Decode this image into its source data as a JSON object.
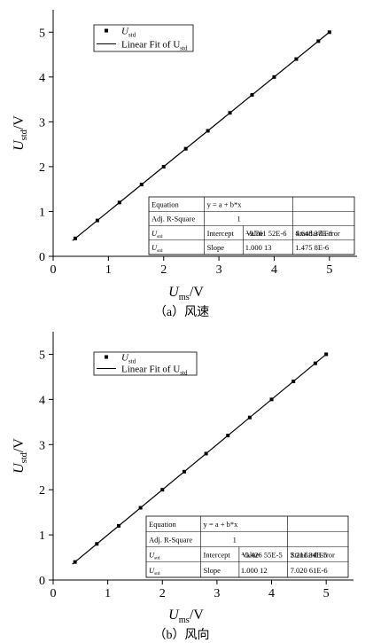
{
  "chart_data": [
    {
      "type": "scatter",
      "x_label": {
        "main": "U",
        "sub": "ms",
        "unit": "/V"
      },
      "y_label": {
        "main": "U",
        "sub": "std",
        "unit": "/V"
      },
      "caption": "（a）风速",
      "xlim": [
        0,
        5.5
      ],
      "ylim": [
        0,
        5.5
      ],
      "xticks": [
        0,
        1,
        2,
        3,
        4,
        5
      ],
      "yticks": [
        0,
        1,
        2,
        3,
        4,
        5
      ],
      "series": [
        {
          "name": "U",
          "name_sub": "std",
          "type": "scatter",
          "color": "#000000",
          "x": [
            0.4,
            0.8,
            1.2,
            1.6,
            2.0,
            2.4,
            2.8,
            3.2,
            3.6,
            4.0,
            4.4,
            4.8,
            5.0
          ],
          "values": [
            0.4,
            0.8,
            1.2,
            1.6,
            2.0,
            2.4,
            2.8,
            3.2,
            3.6,
            4.0,
            4.4,
            4.8,
            5.0
          ]
        },
        {
          "name": "Linear Fit of U",
          "name_sub": "std",
          "type": "line",
          "color": "#000000",
          "x": [
            0.35,
            5.0
          ],
          "values": [
            0.35,
            5.0
          ]
        }
      ],
      "fit_table": {
        "equation_label": "Equation",
        "equation": "y = a + b*x",
        "adj_r2_label": "Adj. R-Square",
        "adj_r2": 1,
        "value_header": "Value",
        "error_header": "Standard Error",
        "params": [
          {
            "var": "U",
            "var_sub": "std",
            "name": "Intercept",
            "value": "−9.761 52E-6",
            "error": "4.648 37E-6"
          },
          {
            "var": "U",
            "var_sub": "std",
            "name": "Slope",
            "value": "1.000 13",
            "error": "1.475 8E-6"
          }
        ]
      }
    },
    {
      "type": "scatter",
      "x_label": {
        "main": "U",
        "sub": "ms",
        "unit": "/V"
      },
      "y_label": {
        "main": "U",
        "sub": "std",
        "unit": "/V"
      },
      "caption": "（b）风向",
      "xlim": [
        0,
        5.5
      ],
      "ylim": [
        0,
        5.5
      ],
      "xticks": [
        0,
        1,
        2,
        3,
        4,
        5
      ],
      "yticks": [
        0,
        1,
        2,
        3,
        4,
        5
      ],
      "series": [
        {
          "name": "U",
          "name_sub": "std",
          "type": "scatter",
          "color": "#000000",
          "x": [
            0.4,
            0.8,
            1.2,
            1.6,
            2.0,
            2.4,
            2.8,
            3.2,
            3.6,
            4.0,
            4.4,
            4.8,
            5.0
          ],
          "values": [
            0.4,
            0.8,
            1.2,
            1.6,
            2.0,
            2.4,
            2.8,
            3.2,
            3.6,
            4.0,
            4.4,
            4.8,
            5.0
          ]
        },
        {
          "name": "Linear Fit of U",
          "name_sub": "std",
          "type": "line",
          "color": "#000000",
          "x": [
            0.35,
            5.0
          ],
          "values": [
            0.35,
            5.0
          ]
        }
      ],
      "fit_table": {
        "equation_label": "Equation",
        "equation": "y = a + b*x",
        "adj_r2_label": "Adj. R-Square",
        "adj_r2": 1,
        "value_header": "Value",
        "error_header": "Standard Error",
        "params": [
          {
            "var": "U",
            "var_sub": "std",
            "name": "Intercept",
            "value": "−5.426 55E-5",
            "error": "2.211 34E-5"
          },
          {
            "var": "U",
            "var_sub": "std",
            "name": "Slope",
            "value": "1.000 12",
            "error": "7.020 61E-6"
          }
        ]
      }
    }
  ]
}
